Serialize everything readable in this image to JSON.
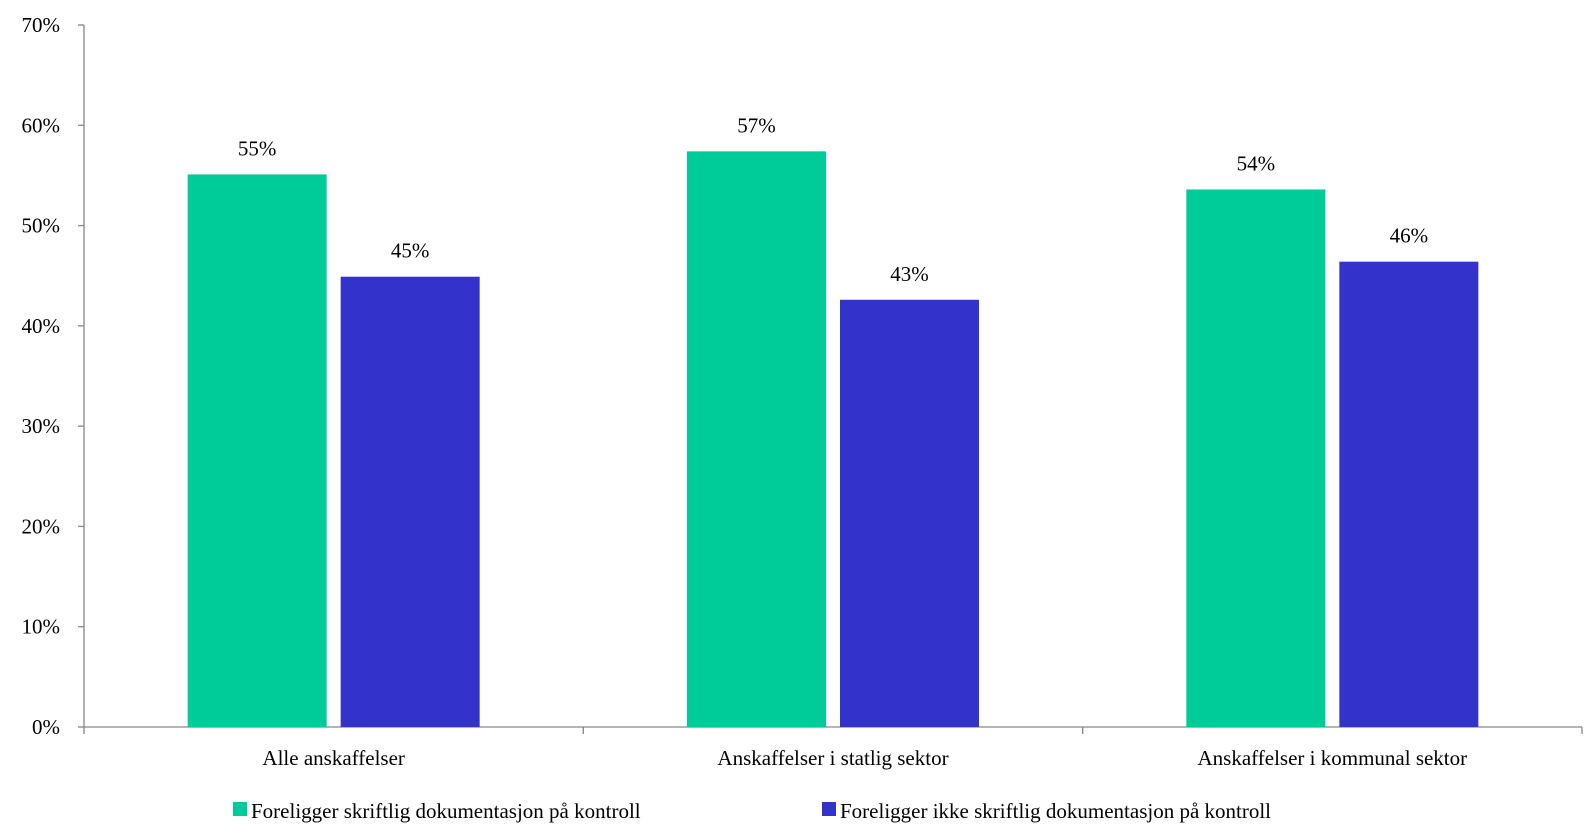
{
  "chart_data": {
    "type": "bar",
    "title": "",
    "xlabel": "",
    "ylabel": "",
    "categories": [
      "Alle anskaffelser",
      "Anskaffelser i statlig sektor",
      "Anskaffelser i kommunal sektor"
    ],
    "series": [
      {
        "name": "Foreligger skriftlig dokumentasjon på kontroll",
        "color": "#00CC99",
        "values": [
          55.1,
          57.4,
          53.6
        ],
        "labels": [
          "55%",
          "57%",
          "54%"
        ]
      },
      {
        "name": "Foreligger ikke skriftlig dokumentasjon på kontroll",
        "color": "#3333CC",
        "values": [
          44.9,
          42.6,
          46.4
        ],
        "labels": [
          "45%",
          "43%",
          "46%"
        ]
      }
    ],
    "ylim": [
      0,
      70
    ],
    "yticks": [
      0,
      10,
      20,
      30,
      40,
      50,
      60,
      70
    ],
    "ytick_labels": [
      "0%",
      "10%",
      "20%",
      "30%",
      "40%",
      "50%",
      "60%",
      "70%"
    ],
    "grid": false,
    "legend_position": "bottom"
  }
}
